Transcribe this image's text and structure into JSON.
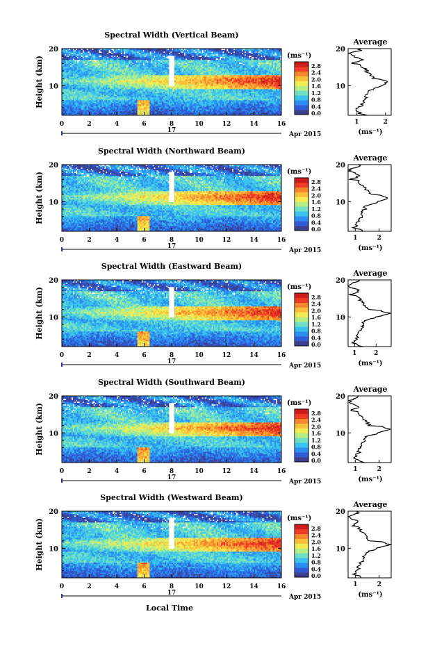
{
  "cmap": [
    "#3b3f8e",
    "#2f5bd6",
    "#2a8ff0",
    "#3bc3ee",
    "#6fe0c4",
    "#b6ee86",
    "#f2ec52",
    "#f8c03a",
    "#f6862c",
    "#ee3b26",
    "#cc1c1c"
  ],
  "colorbar": {
    "unit_label": "(ms⁻¹)",
    "ticks": [
      "2.8",
      "2.4",
      "2.0",
      "1.6",
      "1.2",
      "0.8",
      "0.4",
      "0.0"
    ]
  },
  "xaxis": {
    "ticks": [
      "0",
      "2",
      "4",
      "6",
      "8",
      "10",
      "12",
      "14",
      "16"
    ],
    "day_label": "17",
    "date_label": "Apr 2015",
    "bottom_label": "Local Time"
  },
  "chart_data": [
    {
      "type": "heatmap",
      "title": "Spectral Width (Vertical Beam)",
      "ylabel": "Height (km)",
      "yticks": [
        "20",
        "10"
      ],
      "xlim": [
        0,
        16
      ],
      "ylim": [
        2,
        20
      ],
      "clim": [
        0,
        3.0
      ],
      "avg": {
        "title": "Average",
        "xlabel": "(ms⁻¹)",
        "xticks": [
          "1",
          "2"
        ],
        "xlim": [
          0.7,
          2.2
        ]
      }
    },
    {
      "type": "heatmap",
      "title": "Spectral Width (Northward Beam)",
      "ylabel": "Height (km)",
      "yticks": [
        "20",
        "10"
      ],
      "xlim": [
        0,
        16
      ],
      "ylim": [
        2,
        20
      ],
      "clim": [
        0,
        3.0
      ],
      "avg": {
        "title": "Average",
        "xlabel": "(ms⁻¹)",
        "xticks": [
          "1",
          "2"
        ],
        "xlim": [
          0.7,
          2.5
        ]
      }
    },
    {
      "type": "heatmap",
      "title": "Spectral Width (Eastward Beam)",
      "ylabel": "Height (km)",
      "yticks": [
        "20",
        "10"
      ],
      "xlim": [
        0,
        16
      ],
      "ylim": [
        2,
        20
      ],
      "clim": [
        0,
        3.0
      ],
      "avg": {
        "title": "Average",
        "xlabel": "(ms⁻¹)",
        "xticks": [
          "1",
          "2"
        ],
        "xlim": [
          0.7,
          2.7
        ]
      }
    },
    {
      "type": "heatmap",
      "title": "Spectral Width (Southward Beam)",
      "ylabel": "Height (km)",
      "yticks": [
        "20",
        "10"
      ],
      "xlim": [
        0,
        16
      ],
      "ylim": [
        2,
        20
      ],
      "clim": [
        0,
        3.0
      ],
      "avg": {
        "title": "Average",
        "xlabel": "(ms⁻¹)",
        "xticks": [
          "1",
          "2"
        ],
        "xlim": [
          0.7,
          2.5
        ]
      }
    },
    {
      "type": "heatmap",
      "title": "Spectral Width (Westward Beam)",
      "ylabel": "Height (km)",
      "yticks": [
        "20",
        "10"
      ],
      "xlim": [
        0,
        16
      ],
      "ylim": [
        2,
        20
      ],
      "clim": [
        0,
        3.0
      ],
      "avg": {
        "title": "Average",
        "xlabel": "(ms⁻¹)",
        "xticks": [
          "1",
          "2"
        ],
        "xlim": [
          0.7,
          2.5
        ]
      }
    }
  ]
}
